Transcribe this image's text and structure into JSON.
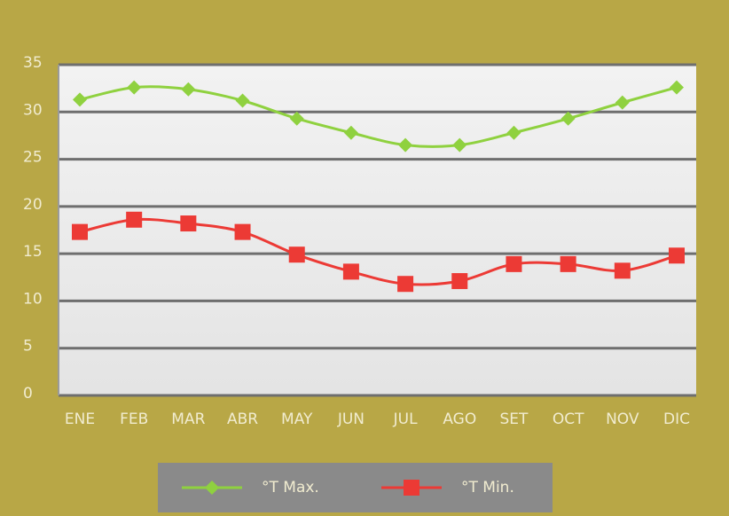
{
  "chart_data": {
    "type": "line",
    "categories": [
      "ENE",
      "FEB",
      "MAR",
      "ABR",
      "MAY",
      "JUN",
      "JUL",
      "AGO",
      "SET",
      "OCT",
      "NOV",
      "DIC"
    ],
    "series": [
      {
        "name": "°T Max.",
        "color": "#8fd13f",
        "marker": "diamond",
        "values": [
          31.3,
          32.6,
          32.4,
          31.2,
          29.3,
          27.8,
          26.5,
          26.5,
          27.8,
          29.3,
          31.0,
          32.6
        ]
      },
      {
        "name": "°T Min.",
        "color": "#ec3a35",
        "marker": "square",
        "values": [
          17.3,
          18.6,
          18.2,
          17.3,
          14.9,
          13.1,
          11.8,
          12.1,
          13.9,
          13.9,
          13.2,
          14.8
        ]
      }
    ],
    "ylim": [
      0,
      35
    ],
    "yticks": [
      0,
      5,
      10,
      15,
      20,
      25,
      30,
      35
    ],
    "grid": true,
    "legend": "bottom"
  }
}
